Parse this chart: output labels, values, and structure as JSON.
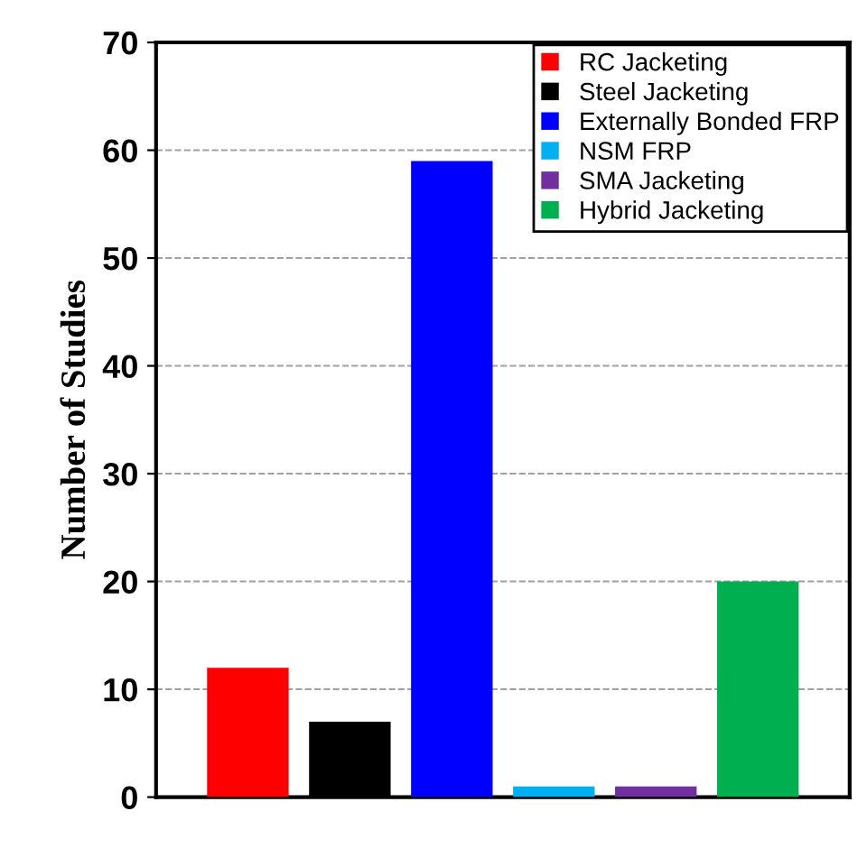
{
  "chart_data": {
    "type": "bar",
    "ylabel": "Number of Studies",
    "categories": [
      null,
      null,
      null,
      null,
      null,
      null
    ],
    "series": [
      {
        "name": "RC Jacketing",
        "color": "#ff0000",
        "values": [
          12,
          null,
          null,
          null,
          null,
          null
        ]
      },
      {
        "name": "Steel Jacketing",
        "color": "#000000",
        "values": [
          null,
          7,
          null,
          null,
          null,
          null
        ]
      },
      {
        "name": "Externally Bonded FRP",
        "color": "#0000ff",
        "values": [
          null,
          null,
          59,
          null,
          null,
          null
        ]
      },
      {
        "name": "NSM FRP",
        "color": "#00b0f0",
        "values": [
          null,
          null,
          null,
          1,
          null,
          null
        ]
      },
      {
        "name": "SMA Jacketing",
        "color": "#7030a0",
        "values": [
          null,
          null,
          null,
          null,
          1,
          null
        ]
      },
      {
        "name": "Hybrid Jacketing",
        "color": "#00b050",
        "values": [
          null,
          null,
          null,
          null,
          null,
          20
        ]
      }
    ],
    "ylim": [
      0,
      70
    ],
    "yticks": [
      0,
      10,
      20,
      30,
      40,
      50,
      60,
      70
    ],
    "grid": "y",
    "legend": "top right"
  }
}
